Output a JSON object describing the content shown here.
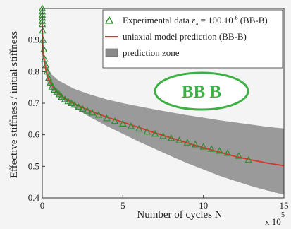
{
  "chart_data": {
    "type": "scatter",
    "xlabel": "Number of cycles N",
    "ylabel": "Effective stiffness / initial stiffness",
    "x_multiplier_label": "x 10",
    "x_multiplier_exp": "5",
    "xlim": [
      0,
      15
    ],
    "ylim": [
      0.4,
      1.0
    ],
    "x_ticks": [
      0,
      5,
      10,
      15
    ],
    "y_ticks": [
      0.4,
      0.5,
      0.6,
      0.7,
      0.8,
      0.9
    ],
    "y_tick_labels": [
      "0.4",
      "0.5",
      "0.6",
      "0.7",
      "0.8",
      "0.9"
    ],
    "grid": false,
    "legend_position": "top-right",
    "legend": [
      {
        "label": "Experimental data ε",
        "label_sub": "a",
        "label_rest": " = 100.10",
        "label_sup": "-6",
        "label_end": " (BB-B)",
        "kind": "marker"
      },
      {
        "label": "uniaxial model prediction (BB-B)",
        "kind": "line"
      },
      {
        "label": "prediction zone",
        "kind": "area"
      }
    ],
    "series": [
      {
        "name": "Experimental data (BB-B)",
        "kind": "scatter",
        "marker": "triangle",
        "color": "#2e8b2e",
        "points": [
          [
            0.0,
            1.0
          ],
          [
            0.0,
            0.99
          ],
          [
            0.0,
            0.98
          ],
          [
            0.0,
            0.97
          ],
          [
            0.0,
            0.96
          ],
          [
            0.0,
            0.95
          ],
          [
            0.02,
            0.93
          ],
          [
            0.05,
            0.9
          ],
          [
            0.1,
            0.87
          ],
          [
            0.15,
            0.84
          ],
          [
            0.22,
            0.82
          ],
          [
            0.3,
            0.8
          ],
          [
            0.4,
            0.78
          ],
          [
            0.5,
            0.765
          ],
          [
            0.6,
            0.752
          ],
          [
            0.75,
            0.742
          ],
          [
            0.9,
            0.735
          ],
          [
            1.05,
            0.728
          ],
          [
            1.2,
            0.72
          ],
          [
            1.4,
            0.712
          ],
          [
            1.6,
            0.706
          ],
          [
            1.8,
            0.7
          ],
          [
            2.0,
            0.695
          ],
          [
            2.25,
            0.688
          ],
          [
            2.5,
            0.682
          ],
          [
            2.8,
            0.676
          ],
          [
            3.1,
            0.67
          ],
          [
            3.5,
            0.663
          ],
          [
            4.0,
            0.652
          ],
          [
            4.5,
            0.643
          ],
          [
            5.0,
            0.635
          ],
          [
            5.5,
            0.627
          ],
          [
            6.0,
            0.619
          ],
          [
            6.5,
            0.61
          ],
          [
            7.0,
            0.603
          ],
          [
            7.5,
            0.596
          ],
          [
            8.0,
            0.589
          ],
          [
            8.5,
            0.582
          ],
          [
            9.0,
            0.575
          ],
          [
            9.5,
            0.569
          ],
          [
            10.0,
            0.562
          ],
          [
            10.5,
            0.555
          ],
          [
            11.0,
            0.549
          ],
          [
            11.5,
            0.542
          ],
          [
            12.2,
            0.533
          ],
          [
            12.8,
            0.52
          ]
        ]
      },
      {
        "name": "uniaxial model prediction (BB-B)",
        "kind": "line",
        "color": "#d9342b",
        "points": [
          [
            0.0,
            0.95
          ],
          [
            0.05,
            0.87
          ],
          [
            0.1,
            0.84
          ],
          [
            0.2,
            0.81
          ],
          [
            0.35,
            0.78
          ],
          [
            0.5,
            0.765
          ],
          [
            0.75,
            0.745
          ],
          [
            1.0,
            0.73
          ],
          [
            1.5,
            0.712
          ],
          [
            2.0,
            0.698
          ],
          [
            3.0,
            0.675
          ],
          [
            4.0,
            0.656
          ],
          [
            5.0,
            0.64
          ],
          [
            6.0,
            0.623
          ],
          [
            7.0,
            0.606
          ],
          [
            8.0,
            0.59
          ],
          [
            9.0,
            0.574
          ],
          [
            10.0,
            0.559
          ],
          [
            11.0,
            0.545
          ],
          [
            12.0,
            0.531
          ],
          [
            13.0,
            0.52
          ],
          [
            14.0,
            0.51
          ],
          [
            15.0,
            0.502
          ]
        ]
      },
      {
        "name": "prediction zone",
        "kind": "band",
        "color": "#8a8a8a",
        "upper": [
          [
            0.0,
            0.95
          ],
          [
            0.1,
            0.86
          ],
          [
            0.3,
            0.815
          ],
          [
            0.6,
            0.79
          ],
          [
            1.0,
            0.772
          ],
          [
            2.0,
            0.745
          ],
          [
            3.0,
            0.727
          ],
          [
            4.0,
            0.712
          ],
          [
            5.0,
            0.7
          ],
          [
            6.0,
            0.69
          ],
          [
            7.0,
            0.68
          ],
          [
            8.0,
            0.671
          ],
          [
            9.0,
            0.662
          ],
          [
            10.0,
            0.654
          ],
          [
            11.0,
            0.646
          ],
          [
            12.0,
            0.639
          ],
          [
            13.0,
            0.632
          ],
          [
            14.0,
            0.625
          ],
          [
            15.0,
            0.62
          ]
        ],
        "lower": [
          [
            0.0,
            0.95
          ],
          [
            0.1,
            0.83
          ],
          [
            0.3,
            0.77
          ],
          [
            0.6,
            0.74
          ],
          [
            1.0,
            0.72
          ],
          [
            2.0,
            0.685
          ],
          [
            3.0,
            0.655
          ],
          [
            4.0,
            0.628
          ],
          [
            5.0,
            0.603
          ],
          [
            6.0,
            0.578
          ],
          [
            7.0,
            0.555
          ],
          [
            8.0,
            0.532
          ],
          [
            9.0,
            0.51
          ],
          [
            10.0,
            0.49
          ],
          [
            11.0,
            0.47
          ],
          [
            12.0,
            0.453
          ],
          [
            13.0,
            0.437
          ],
          [
            14.0,
            0.423
          ],
          [
            15.0,
            0.41
          ]
        ]
      }
    ]
  },
  "badge": {
    "text": "BB B",
    "color": "#3cb043"
  }
}
